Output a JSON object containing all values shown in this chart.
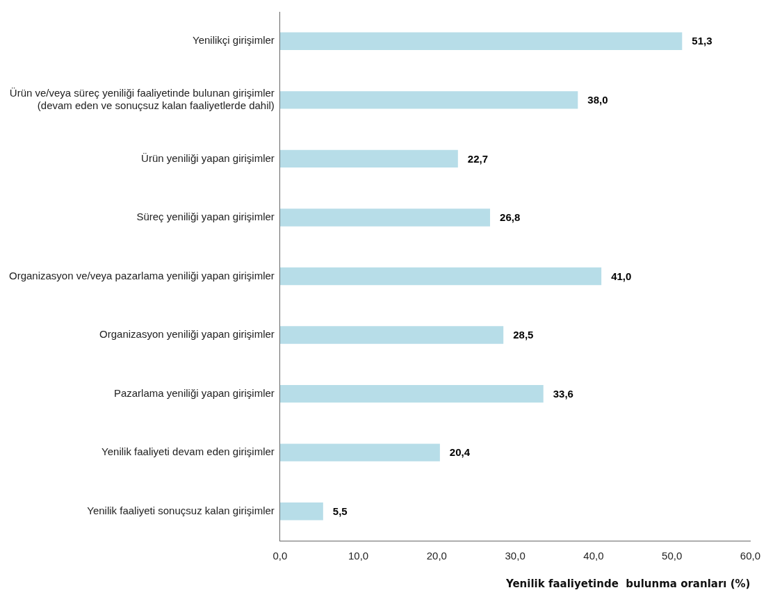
{
  "chart_data": {
    "type": "bar",
    "orientation": "horizontal",
    "xlabel": "Yenilik faaliyetinde  bulunma oranları (%)",
    "categories": [
      "Yenilikçi girişimler",
      "Ürün ve/veya süreç yeniliği faaliyetinde bulunan girişimler\n(devam eden ve sonuçsuz kalan faaliyetlerde dahil)",
      "Ürün yeniliği yapan girişimler",
      "Süreç yeniliği yapan girişimler",
      "Organizasyon ve/veya pazarlama yeniliği yapan girişimler",
      "Organizasyon yeniliği yapan girişimler",
      "Pazarlama yeniliği yapan girişimler",
      "Yenilik faaliyeti devam eden girişimler",
      "Yenilik faaliyeti sonuçsuz kalan girişimler"
    ],
    "values": [
      51.3,
      38.0,
      22.7,
      26.8,
      41.0,
      28.5,
      33.6,
      20.4,
      5.5
    ],
    "value_labels": [
      "51,3",
      "38,0",
      "22,7",
      "26,8",
      "41,0",
      "28,5",
      "33,6",
      "20,4",
      "5,5"
    ],
    "color": "#b7dde8",
    "xlim": [
      0,
      60
    ],
    "xticks": [
      {
        "value": 0,
        "label": "0,0"
      },
      {
        "value": 10,
        "label": "10,0"
      },
      {
        "value": 20,
        "label": "20,0"
      },
      {
        "value": 30,
        "label": "30,0"
      },
      {
        "value": 40,
        "label": "40,0"
      },
      {
        "value": 50,
        "label": "50,0"
      },
      {
        "value": 60,
        "label": "60,0"
      }
    ],
    "grid": false,
    "legend": false
  }
}
